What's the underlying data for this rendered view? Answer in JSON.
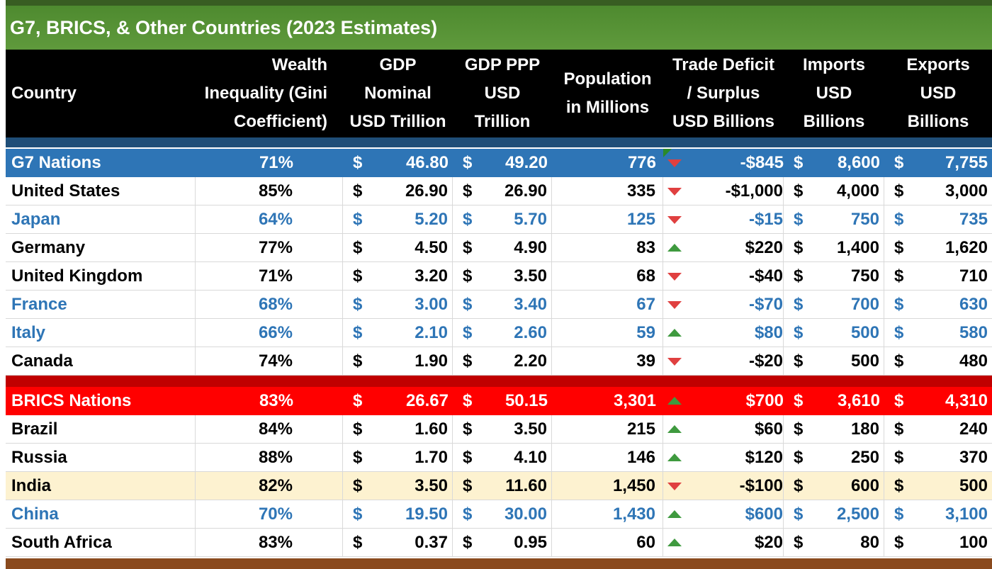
{
  "title": "G7, BRICS, & Other Countries (2023 Estimates)",
  "headers": {
    "country": [
      "Country"
    ],
    "wealth": [
      "Wealth",
      "Inequality (Gini",
      "Coefficient)"
    ],
    "gdp": [
      "GDP",
      "Nominal",
      "USD Trillion"
    ],
    "ppp": [
      "GDP PPP",
      "USD",
      "Trillion"
    ],
    "pop": [
      "Population",
      "in Millions"
    ],
    "trade": [
      "Trade Deficit",
      "/ Surplus",
      "USD Billions"
    ],
    "imp": [
      "Imports",
      "USD",
      "Billions"
    ],
    "exp": [
      "Exports",
      "USD",
      "Billions"
    ]
  },
  "currency_symbol": "$",
  "colors": {
    "g7_header_bg": "#2e75b6",
    "brics_header_bg": "#ff0000",
    "blue_text": "#2e75b6",
    "india_highlight": "#fdf2d0",
    "arrow_up": "#3f9a3f",
    "arrow_down": "#e04040"
  },
  "rows": [
    {
      "type": "group",
      "bg": "#2e75b6",
      "fg": "#ffffff",
      "country": "G7 Nations",
      "wealth": "71%",
      "gdp": "46.80",
      "ppp": "49.20",
      "pop": "776",
      "trend": "down",
      "trade": "-$845",
      "imp": "8,600",
      "exp": "7,755",
      "flag": true
    },
    {
      "type": "data",
      "bg": "#ffffff",
      "fg": "#000000",
      "country": "United States",
      "wealth": "85%",
      "gdp": "26.90",
      "ppp": "26.90",
      "pop": "335",
      "trend": "down",
      "trade": "-$1,000",
      "imp": "4,000",
      "exp": "3,000"
    },
    {
      "type": "data",
      "bg": "#ffffff",
      "fg": "#2e75b6",
      "country": "Japan",
      "wealth": "64%",
      "gdp": "5.20",
      "ppp": "5.70",
      "pop": "125",
      "trend": "down",
      "trade": "-$15",
      "imp": "750",
      "exp": "735"
    },
    {
      "type": "data",
      "bg": "#ffffff",
      "fg": "#000000",
      "country": "Germany",
      "wealth": "77%",
      "gdp": "4.50",
      "ppp": "4.90",
      "pop": "83",
      "trend": "up",
      "trade": "$220",
      "imp": "1,400",
      "exp": "1,620"
    },
    {
      "type": "data",
      "bg": "#ffffff",
      "fg": "#000000",
      "country": "United Kingdom",
      "wealth": "71%",
      "gdp": "3.20",
      "ppp": "3.50",
      "pop": "68",
      "trend": "down",
      "trade": "-$40",
      "imp": "750",
      "exp": "710"
    },
    {
      "type": "data",
      "bg": "#ffffff",
      "fg": "#2e75b6",
      "country": "France",
      "wealth": "68%",
      "gdp": "3.00",
      "ppp": "3.40",
      "pop": "67",
      "trend": "down",
      "trade": "-$70",
      "imp": "700",
      "exp": "630"
    },
    {
      "type": "data",
      "bg": "#ffffff",
      "fg": "#2e75b6",
      "country": "Italy",
      "wealth": "66%",
      "gdp": "2.10",
      "ppp": "2.60",
      "pop": "59",
      "trend": "up",
      "trade": "$80",
      "imp": "500",
      "exp": "580"
    },
    {
      "type": "data",
      "bg": "#ffffff",
      "fg": "#000000",
      "country": "Canada",
      "wealth": "74%",
      "gdp": "1.90",
      "ppp": "2.20",
      "pop": "39",
      "trend": "down",
      "trade": "-$20",
      "imp": "500",
      "exp": "480"
    },
    {
      "type": "group",
      "bg": "#ff0000",
      "fg": "#ffffff",
      "country": "BRICS Nations",
      "wealth": "83%",
      "gdp": "26.67",
      "ppp": "50.15",
      "pop": "3,301",
      "trend": "up",
      "trade": "$700",
      "imp": "3,610",
      "exp": "4,310"
    },
    {
      "type": "data",
      "bg": "#ffffff",
      "fg": "#000000",
      "country": "Brazil",
      "wealth": "84%",
      "gdp": "1.60",
      "ppp": "3.50",
      "pop": "215",
      "trend": "up",
      "trade": "$60",
      "imp": "180",
      "exp": "240"
    },
    {
      "type": "data",
      "bg": "#ffffff",
      "fg": "#000000",
      "country": "Russia",
      "wealth": "88%",
      "gdp": "1.70",
      "ppp": "4.10",
      "pop": "146",
      "trend": "up",
      "trade": "$120",
      "imp": "250",
      "exp": "370"
    },
    {
      "type": "data",
      "bg": "#fdf2d0",
      "fg": "#000000",
      "country": "India",
      "wealth": "82%",
      "gdp": "3.50",
      "ppp": "11.60",
      "pop": "1,450",
      "trend": "down",
      "trade": "-$100",
      "imp": "600",
      "exp": "500"
    },
    {
      "type": "data",
      "bg": "#ffffff",
      "fg": "#2e75b6",
      "country": "China",
      "wealth": "70%",
      "gdp": "19.50",
      "ppp": "30.00",
      "pop": "1,430",
      "trend": "up",
      "trade": "$600",
      "imp": "2,500",
      "exp": "3,100"
    },
    {
      "type": "data",
      "bg": "#ffffff",
      "fg": "#000000",
      "country": "South Africa",
      "wealth": "83%",
      "gdp": "0.37",
      "ppp": "0.95",
      "pop": "60",
      "trend": "up",
      "trade": "$20",
      "imp": "80",
      "exp": "100"
    }
  ]
}
